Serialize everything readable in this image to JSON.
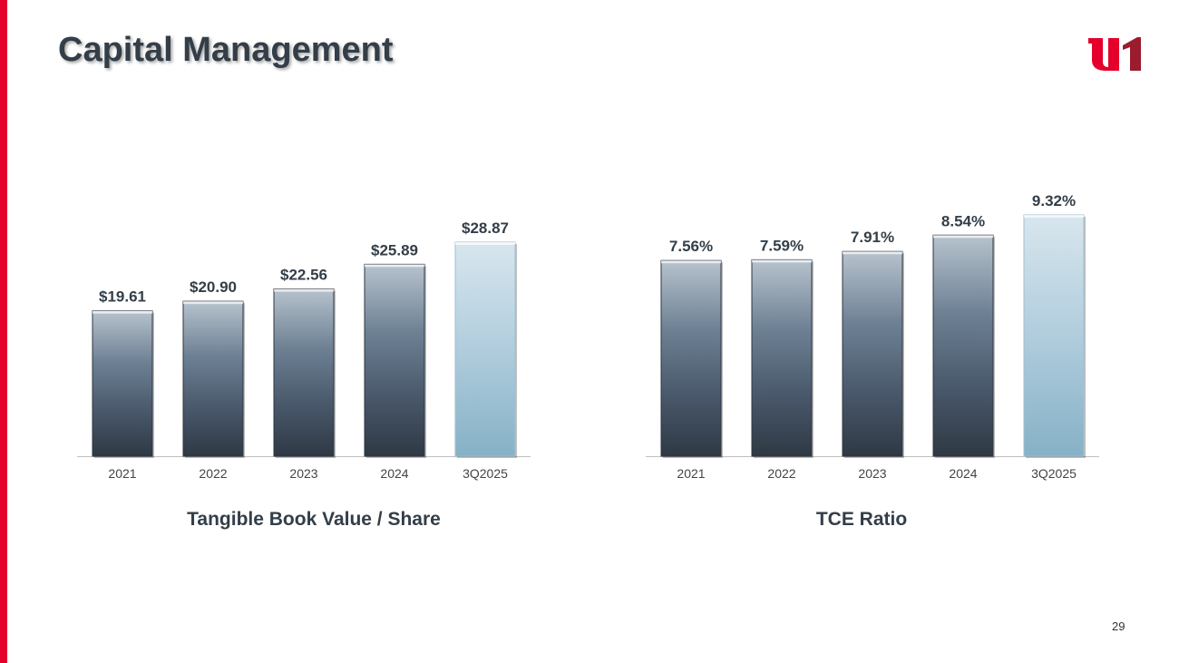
{
  "title": "Capital Management",
  "page_number": "29",
  "logo_text": "u1",
  "colors": {
    "accent": "#e4002b",
    "title": "#333e48",
    "bar_dark": "#3a4450",
    "bar_light": "#8fb6c9"
  },
  "chart_data": [
    {
      "type": "bar",
      "title": "Tangible Book Value / Share",
      "categories": [
        "2021",
        "2022",
        "2023",
        "2024",
        "3Q2025"
      ],
      "values": [
        19.61,
        20.9,
        22.56,
        25.89,
        28.87
      ],
      "labels": [
        "$19.61",
        "$20.90",
        "$22.56",
        "$25.89",
        "$28.87"
      ],
      "xlabel": "",
      "ylabel": "",
      "ylim": [
        0,
        28.87
      ],
      "grid": false
    },
    {
      "type": "bar",
      "title": "TCE Ratio",
      "categories": [
        "2021",
        "2022",
        "2023",
        "2024",
        "3Q2025"
      ],
      "values": [
        7.56,
        7.59,
        7.91,
        8.54,
        9.32
      ],
      "labels": [
        "7.56%",
        "7.59%",
        "7.91%",
        "8.54%",
        "9.32%"
      ],
      "xlabel": "",
      "ylabel": "",
      "ylim": [
        0,
        9.32
      ],
      "grid": false
    }
  ]
}
